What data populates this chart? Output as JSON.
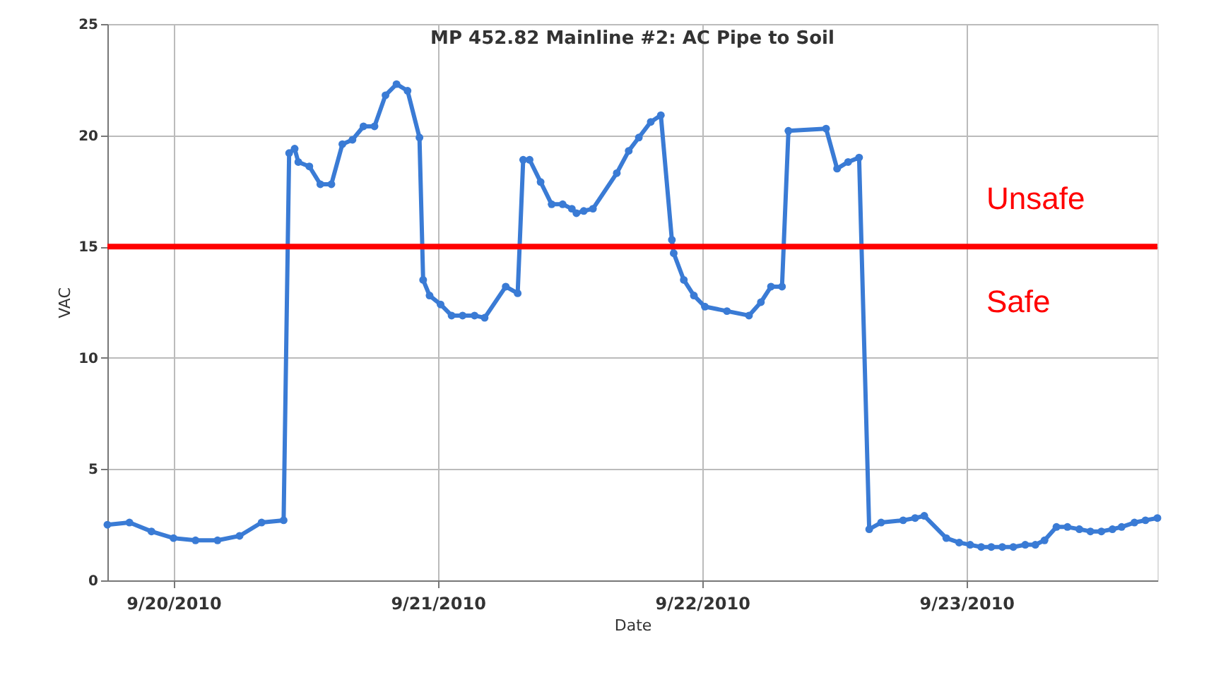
{
  "chart_data": {
    "type": "line",
    "title": "MP 452.82 Mainline #2: AC Pipe to Soil",
    "xlabel": "Date",
    "ylabel": "VAC",
    "x": [
      "2010-09-19T18:00",
      "2010-09-19T20:00",
      "2010-09-19T22:00",
      "2010-09-20T00:00",
      "2010-09-20T02:00",
      "2010-09-20T04:00",
      "2010-09-20T06:00",
      "2010-09-20T08:00",
      "2010-09-20T10:00",
      "2010-09-20T10:30",
      "2010-09-20T11:00",
      "2010-09-20T11:20",
      "2010-09-20T12:20",
      "2010-09-20T13:20",
      "2010-09-20T14:20",
      "2010-09-20T15:20",
      "2010-09-20T16:15",
      "2010-09-20T17:15",
      "2010-09-20T18:15",
      "2010-09-20T19:15",
      "2010-09-20T20:15",
      "2010-09-20T21:15",
      "2010-09-20T22:20",
      "2010-09-20T22:40",
      "2010-09-20T23:15",
      "2010-09-21T00:15",
      "2010-09-21T01:15",
      "2010-09-21T02:15",
      "2010-09-21T03:20",
      "2010-09-21T04:15",
      "2010-09-21T06:10",
      "2010-09-21T07:15",
      "2010-09-21T07:45",
      "2010-09-21T08:20",
      "2010-09-21T09:20",
      "2010-09-21T10:20",
      "2010-09-21T11:20",
      "2010-09-21T12:10",
      "2010-09-21T12:35",
      "2010-09-21T13:15",
      "2010-09-21T14:05",
      "2010-09-21T16:15",
      "2010-09-21T17:20",
      "2010-09-21T18:15",
      "2010-09-21T19:20",
      "2010-09-21T20:15",
      "2010-09-21T21:15",
      "2010-09-21T21:25",
      "2010-09-21T22:20",
      "2010-09-21T23:15",
      "2010-09-22T00:15",
      "2010-09-22T02:15",
      "2010-09-22T04:15",
      "2010-09-22T05:20",
      "2010-09-22T06:15",
      "2010-09-22T07:15",
      "2010-09-22T07:50",
      "2010-09-22T11:15",
      "2010-09-22T12:15",
      "2010-09-22T13:15",
      "2010-09-22T14:15",
      "2010-09-22T15:10",
      "2010-09-22T16:15",
      "2010-09-22T18:15",
      "2010-09-22T19:20",
      "2010-09-22T20:10",
      "2010-09-22T22:10",
      "2010-09-22T23:20",
      "2010-09-23T00:20",
      "2010-09-23T01:20",
      "2010-09-23T02:15",
      "2010-09-23T03:15",
      "2010-09-23T04:15",
      "2010-09-23T05:20",
      "2010-09-23T06:15",
      "2010-09-23T07:05",
      "2010-09-23T08:10",
      "2010-09-23T09:10",
      "2010-09-23T10:15",
      "2010-09-23T11:15",
      "2010-09-23T12:15",
      "2010-09-23T13:15",
      "2010-09-23T14:05",
      "2010-09-23T15:15",
      "2010-09-23T16:15",
      "2010-09-23T17:20"
    ],
    "series": [
      {
        "color": "#3a7bd5",
        "values": [
          2.5,
          2.6,
          2.2,
          1.9,
          1.8,
          1.8,
          2.0,
          2.6,
          2.7,
          19.2,
          19.4,
          18.8,
          18.6,
          17.8,
          17.8,
          19.6,
          19.8,
          20.4,
          20.4,
          21.8,
          22.3,
          22.0,
          19.9,
          13.5,
          12.8,
          12.4,
          11.9,
          11.9,
          11.9,
          11.8,
          13.2,
          12.9,
          18.9,
          18.9,
          17.9,
          16.9,
          16.9,
          16.7,
          16.5,
          16.6,
          16.7,
          18.3,
          19.3,
          19.9,
          20.6,
          20.9,
          15.3,
          14.7,
          13.5,
          12.8,
          12.3,
          12.1,
          11.9,
          12.5,
          13.2,
          13.2,
          20.2,
          20.3,
          18.5,
          18.8,
          19.0,
          2.3,
          2.6,
          2.7,
          2.8,
          2.9,
          1.9,
          1.7,
          1.6,
          1.5,
          1.5,
          1.5,
          1.5,
          1.6,
          1.6,
          1.8,
          2.4,
          2.4,
          2.3,
          2.2,
          2.2,
          2.3,
          2.4,
          2.6,
          2.7,
          2.8
        ]
      }
    ],
    "xlim": [
      "2010-09-19T18:00",
      "2010-09-23T17:20"
    ],
    "xticks": [
      {
        "value": "2010-09-20",
        "label": "9/20/2010"
      },
      {
        "value": "2010-09-21",
        "label": "9/21/2010"
      },
      {
        "value": "2010-09-22",
        "label": "9/22/2010"
      },
      {
        "value": "2010-09-23",
        "label": "9/23/2010"
      }
    ],
    "ylim": [
      0,
      25
    ],
    "yticks": [
      0,
      5,
      10,
      15,
      20,
      25
    ],
    "grid": true,
    "marker": "circle",
    "line_style": "solid",
    "ref_lines": [
      {
        "axis": "y",
        "value": 15,
        "label": null,
        "color": "#ff0000"
      }
    ],
    "annotations": [
      "Unsafe",
      "Safe"
    ]
  }
}
